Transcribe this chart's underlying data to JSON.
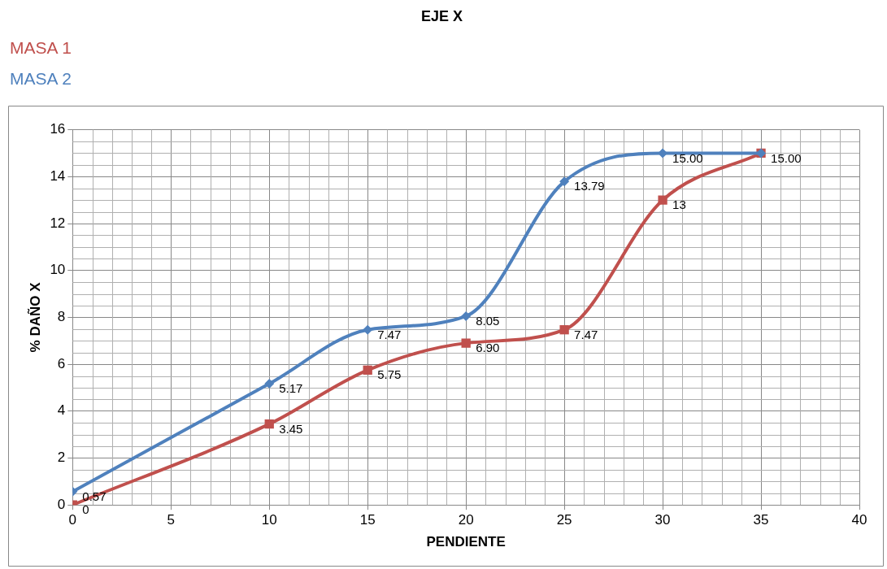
{
  "chart_data": {
    "type": "line",
    "title": "EJE X",
    "xlabel": "PENDIENTE",
    "ylabel": "% DAÑO X",
    "x": [
      0,
      10,
      15,
      20,
      25,
      30,
      35
    ],
    "xlim": [
      0,
      40
    ],
    "xticks": [
      0,
      5,
      10,
      15,
      20,
      25,
      30,
      35,
      40
    ],
    "ylim": [
      0,
      16
    ],
    "yticks": [
      0,
      2,
      4,
      6,
      8,
      10,
      12,
      14,
      16
    ],
    "grid": true,
    "legend": "top left",
    "series": [
      {
        "name": "MASA 1",
        "color": "#c0504d",
        "marker": "square",
        "values": [
          0,
          3.45,
          5.75,
          6.9,
          7.47,
          13,
          15
        ],
        "value_labels": [
          "0",
          "3.45",
          "5.75",
          "6.90",
          "7.47",
          "13",
          "15.00"
        ]
      },
      {
        "name": "MASA 2",
        "color": "#4f81bd",
        "marker": "diamond",
        "values": [
          0.57,
          5.17,
          7.47,
          8.05,
          13.79,
          15,
          15
        ],
        "value_labels": [
          "0.57",
          "5.17",
          "7.47",
          "8.05",
          "13.79",
          "15.00",
          null
        ]
      }
    ]
  }
}
